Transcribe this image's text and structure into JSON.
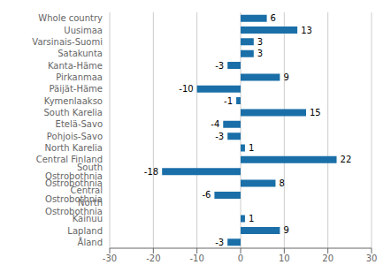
{
  "chart_data": {
    "type": "bar",
    "orientation": "horizontal",
    "categories": [
      "Whole country",
      "Uusimaa",
      "Varsinais-Suomi",
      "Satakunta",
      "Kanta-Häme",
      "Pirkanmaa",
      "Päijät-Häme",
      "Kymenlaakso",
      "South Karelia",
      "Etelä-Savo",
      "Pohjois-Savo",
      "North Karelia",
      "Central Finland",
      "South Ostrobothnia",
      "Ostrobothnia",
      "Central Ostrobothnia",
      "North Ostrobothnia",
      "Kainuu",
      "Lapland",
      "Åland"
    ],
    "values": [
      6,
      13,
      3,
      3,
      -3,
      9,
      -10,
      -1,
      15,
      -4,
      -3,
      1,
      22,
      -18,
      8,
      -6,
      0,
      1,
      9,
      -3
    ],
    "color": "#1a6fa8",
    "xlim": [
      -30,
      30
    ],
    "xticks": [
      -30,
      -20,
      -10,
      0,
      10,
      20,
      30
    ],
    "grid": true,
    "data_labels": true
  }
}
